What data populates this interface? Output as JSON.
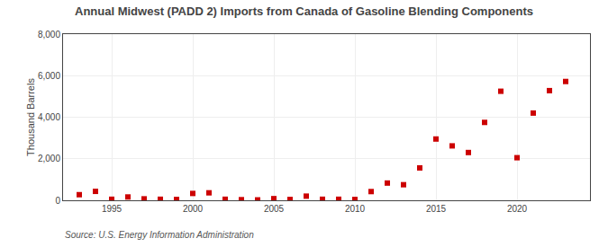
{
  "chart_data": {
    "type": "scatter",
    "title": "Annual Midwest (PADD 2) Imports from Canada of Gasoline Blending Components",
    "ylabel": "Thousand Barrels",
    "annotations": [
      "Source: U.S. Energy Information Administration"
    ],
    "x": [
      1993,
      1994,
      1995,
      1996,
      1997,
      1998,
      1999,
      2000,
      2001,
      2002,
      2003,
      2004,
      2005,
      2006,
      2007,
      2008,
      2009,
      2010,
      2011,
      2012,
      2013,
      2014,
      2015,
      2016,
      2017,
      2018,
      2019,
      2020,
      2021,
      2022,
      2023
    ],
    "values": [
      270,
      430,
      50,
      160,
      70,
      50,
      40,
      330,
      360,
      50,
      30,
      20,
      80,
      40,
      200,
      50,
      50,
      40,
      420,
      830,
      750,
      1560,
      2950,
      2620,
      2300,
      3750,
      5250,
      2050,
      4200,
      5280,
      5720
    ],
    "color": "#cc0000",
    "marker": "square",
    "xlim": [
      1992.0,
      2024.5
    ],
    "xticks": [
      1995,
      2000,
      2005,
      2010,
      2015,
      2020
    ],
    "ylim": [
      0,
      8000
    ],
    "yticks": [
      0,
      {
        "value": 2000,
        "label": "2,000"
      },
      {
        "value": 4000,
        "label": "4,000"
      },
      {
        "value": 6000,
        "label": "6,000"
      },
      {
        "value": 8000,
        "label": "8,000"
      }
    ],
    "grid": true
  }
}
